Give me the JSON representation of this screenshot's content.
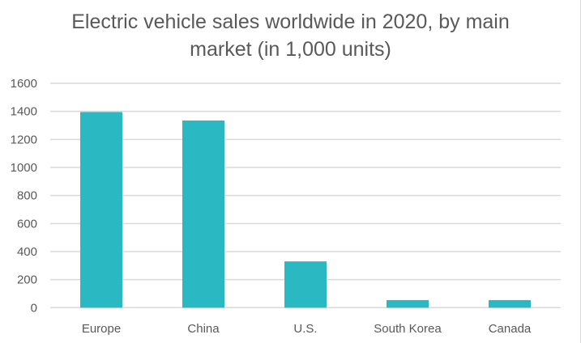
{
  "chart_data": {
    "type": "bar",
    "title_line1": "Electric vehicle sales worldwide in 2020, by main",
    "title_line2": "market (in 1,000 units)",
    "categories": [
      "Europe",
      "China",
      "U.S.",
      "South Korea",
      "Canada"
    ],
    "values": [
      1395,
      1335,
      330,
      54,
      54
    ],
    "xlabel": "",
    "ylabel": "",
    "ylim": [
      0,
      1600
    ],
    "yticks": [
      0,
      200,
      400,
      600,
      800,
      1000,
      1200,
      1400,
      1600
    ],
    "grid": true,
    "bar_color": "#2ab9c2",
    "grid_color": "#d9d9d9"
  }
}
